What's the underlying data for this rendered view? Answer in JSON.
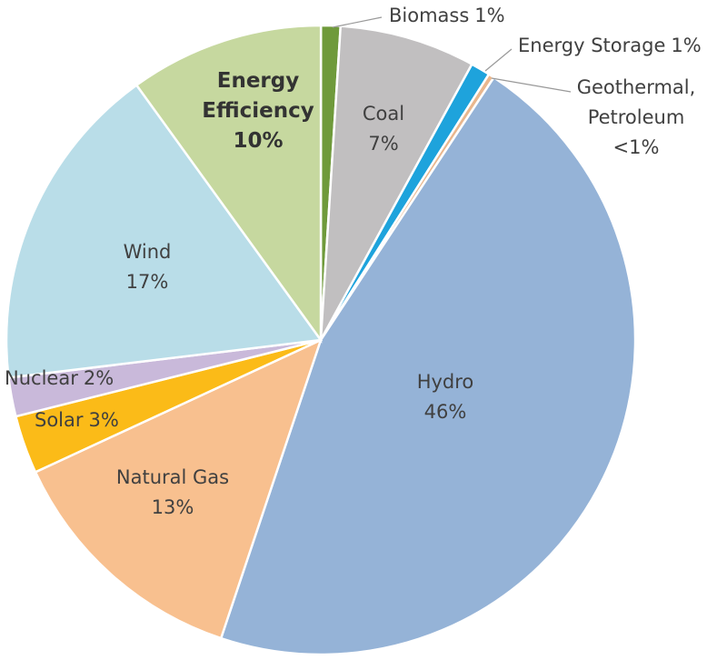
{
  "chart_data": {
    "type": "pie",
    "categories": [
      "Biomass",
      "Coal",
      "Energy Storage",
      "Geothermal, Petroleum",
      "Hydro",
      "Natural Gas",
      "Solar",
      "Nuclear",
      "Wind",
      "Energy Efficiency"
    ],
    "values": [
      1,
      7,
      1,
      0.3,
      46,
      13,
      3,
      2,
      17,
      10
    ],
    "value_labels": [
      "1%",
      "7%",
      "1%",
      "<1%",
      "46%",
      "13%",
      "3%",
      "2%",
      "17%",
      "10%"
    ],
    "colors": [
      "#6f9a3b",
      "#c1bfc0",
      "#1ea3dc",
      "#e9b78e",
      "#95b3d7",
      "#f8c08f",
      "#fbbb18",
      "#c9b9da",
      "#b9dde8",
      "#c6d89f"
    ]
  }
}
